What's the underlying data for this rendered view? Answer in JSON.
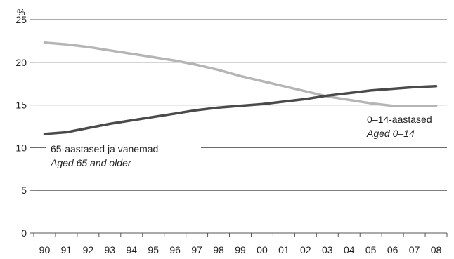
{
  "chart_data": {
    "type": "line",
    "unit_label": "%",
    "x": [
      "90",
      "91",
      "92",
      "93",
      "94",
      "95",
      "96",
      "97",
      "98",
      "99",
      "00",
      "01",
      "02",
      "03",
      "04",
      "05",
      "06",
      "07",
      "08"
    ],
    "ylim": [
      0,
      25
    ],
    "yticks": [
      0,
      5,
      10,
      15,
      20,
      25
    ],
    "grid": true,
    "series": [
      {
        "name": "0–14-aastased",
        "name_en": "Aged 0–14",
        "color": "#b5b5b5",
        "values": [
          22.3,
          22.1,
          21.8,
          21.4,
          21.0,
          20.6,
          20.2,
          19.7,
          19.1,
          18.4,
          17.8,
          17.2,
          16.6,
          16.0,
          15.6,
          15.2,
          14.9,
          14.9,
          14.9
        ]
      },
      {
        "name": "65-aastased ja vanemad",
        "name_en": "Aged 65 and older",
        "color": "#4a4a4a",
        "values": [
          11.6,
          11.8,
          12.3,
          12.8,
          13.2,
          13.6,
          14.0,
          14.4,
          14.7,
          14.9,
          15.1,
          15.4,
          15.7,
          16.1,
          16.4,
          16.7,
          16.9,
          17.1,
          17.2
        ]
      }
    ]
  }
}
